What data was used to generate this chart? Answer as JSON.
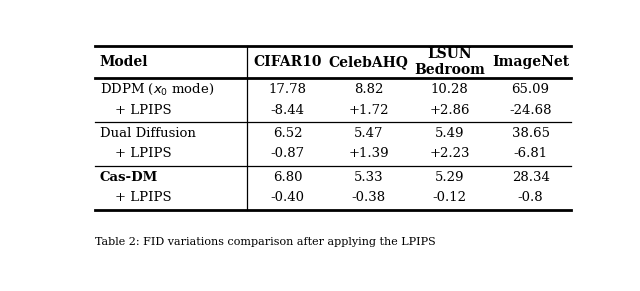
{
  "caption": "Table 2: FID variations comparison after applying the LPIPS",
  "col_headers": [
    "Model",
    "CIFAR10",
    "CelebAHQ",
    "LSUN\nBedroom",
    "ImageNet"
  ],
  "rows": [
    {
      "model_line1": "DDPM ($x_0$ mode)",
      "model_line2": "+ LPIPS",
      "model_bold": false,
      "values": [
        "17.78",
        "8.82",
        "10.28",
        "65.09"
      ],
      "values2": [
        "-8.44",
        "+1.72",
        "+2.86",
        "-24.68"
      ]
    },
    {
      "model_line1": "Dual Diffusion",
      "model_line2": "+ LPIPS",
      "model_bold": false,
      "values": [
        "6.52",
        "5.47",
        "5.49",
        "38.65"
      ],
      "values2": [
        "-0.87",
        "+1.39",
        "+2.23",
        "-6.81"
      ]
    },
    {
      "model_line1": "Cas-DM",
      "model_line2": "+ LPIPS",
      "model_bold": true,
      "values": [
        "6.80",
        "5.33",
        "5.29",
        "28.34"
      ],
      "values2": [
        "-0.40",
        "-0.38",
        "-0.12",
        "-0.8"
      ]
    }
  ],
  "bg_color": "#ffffff",
  "text_color": "#000000",
  "figsize": [
    6.4,
    2.91
  ],
  "dpi": 100
}
